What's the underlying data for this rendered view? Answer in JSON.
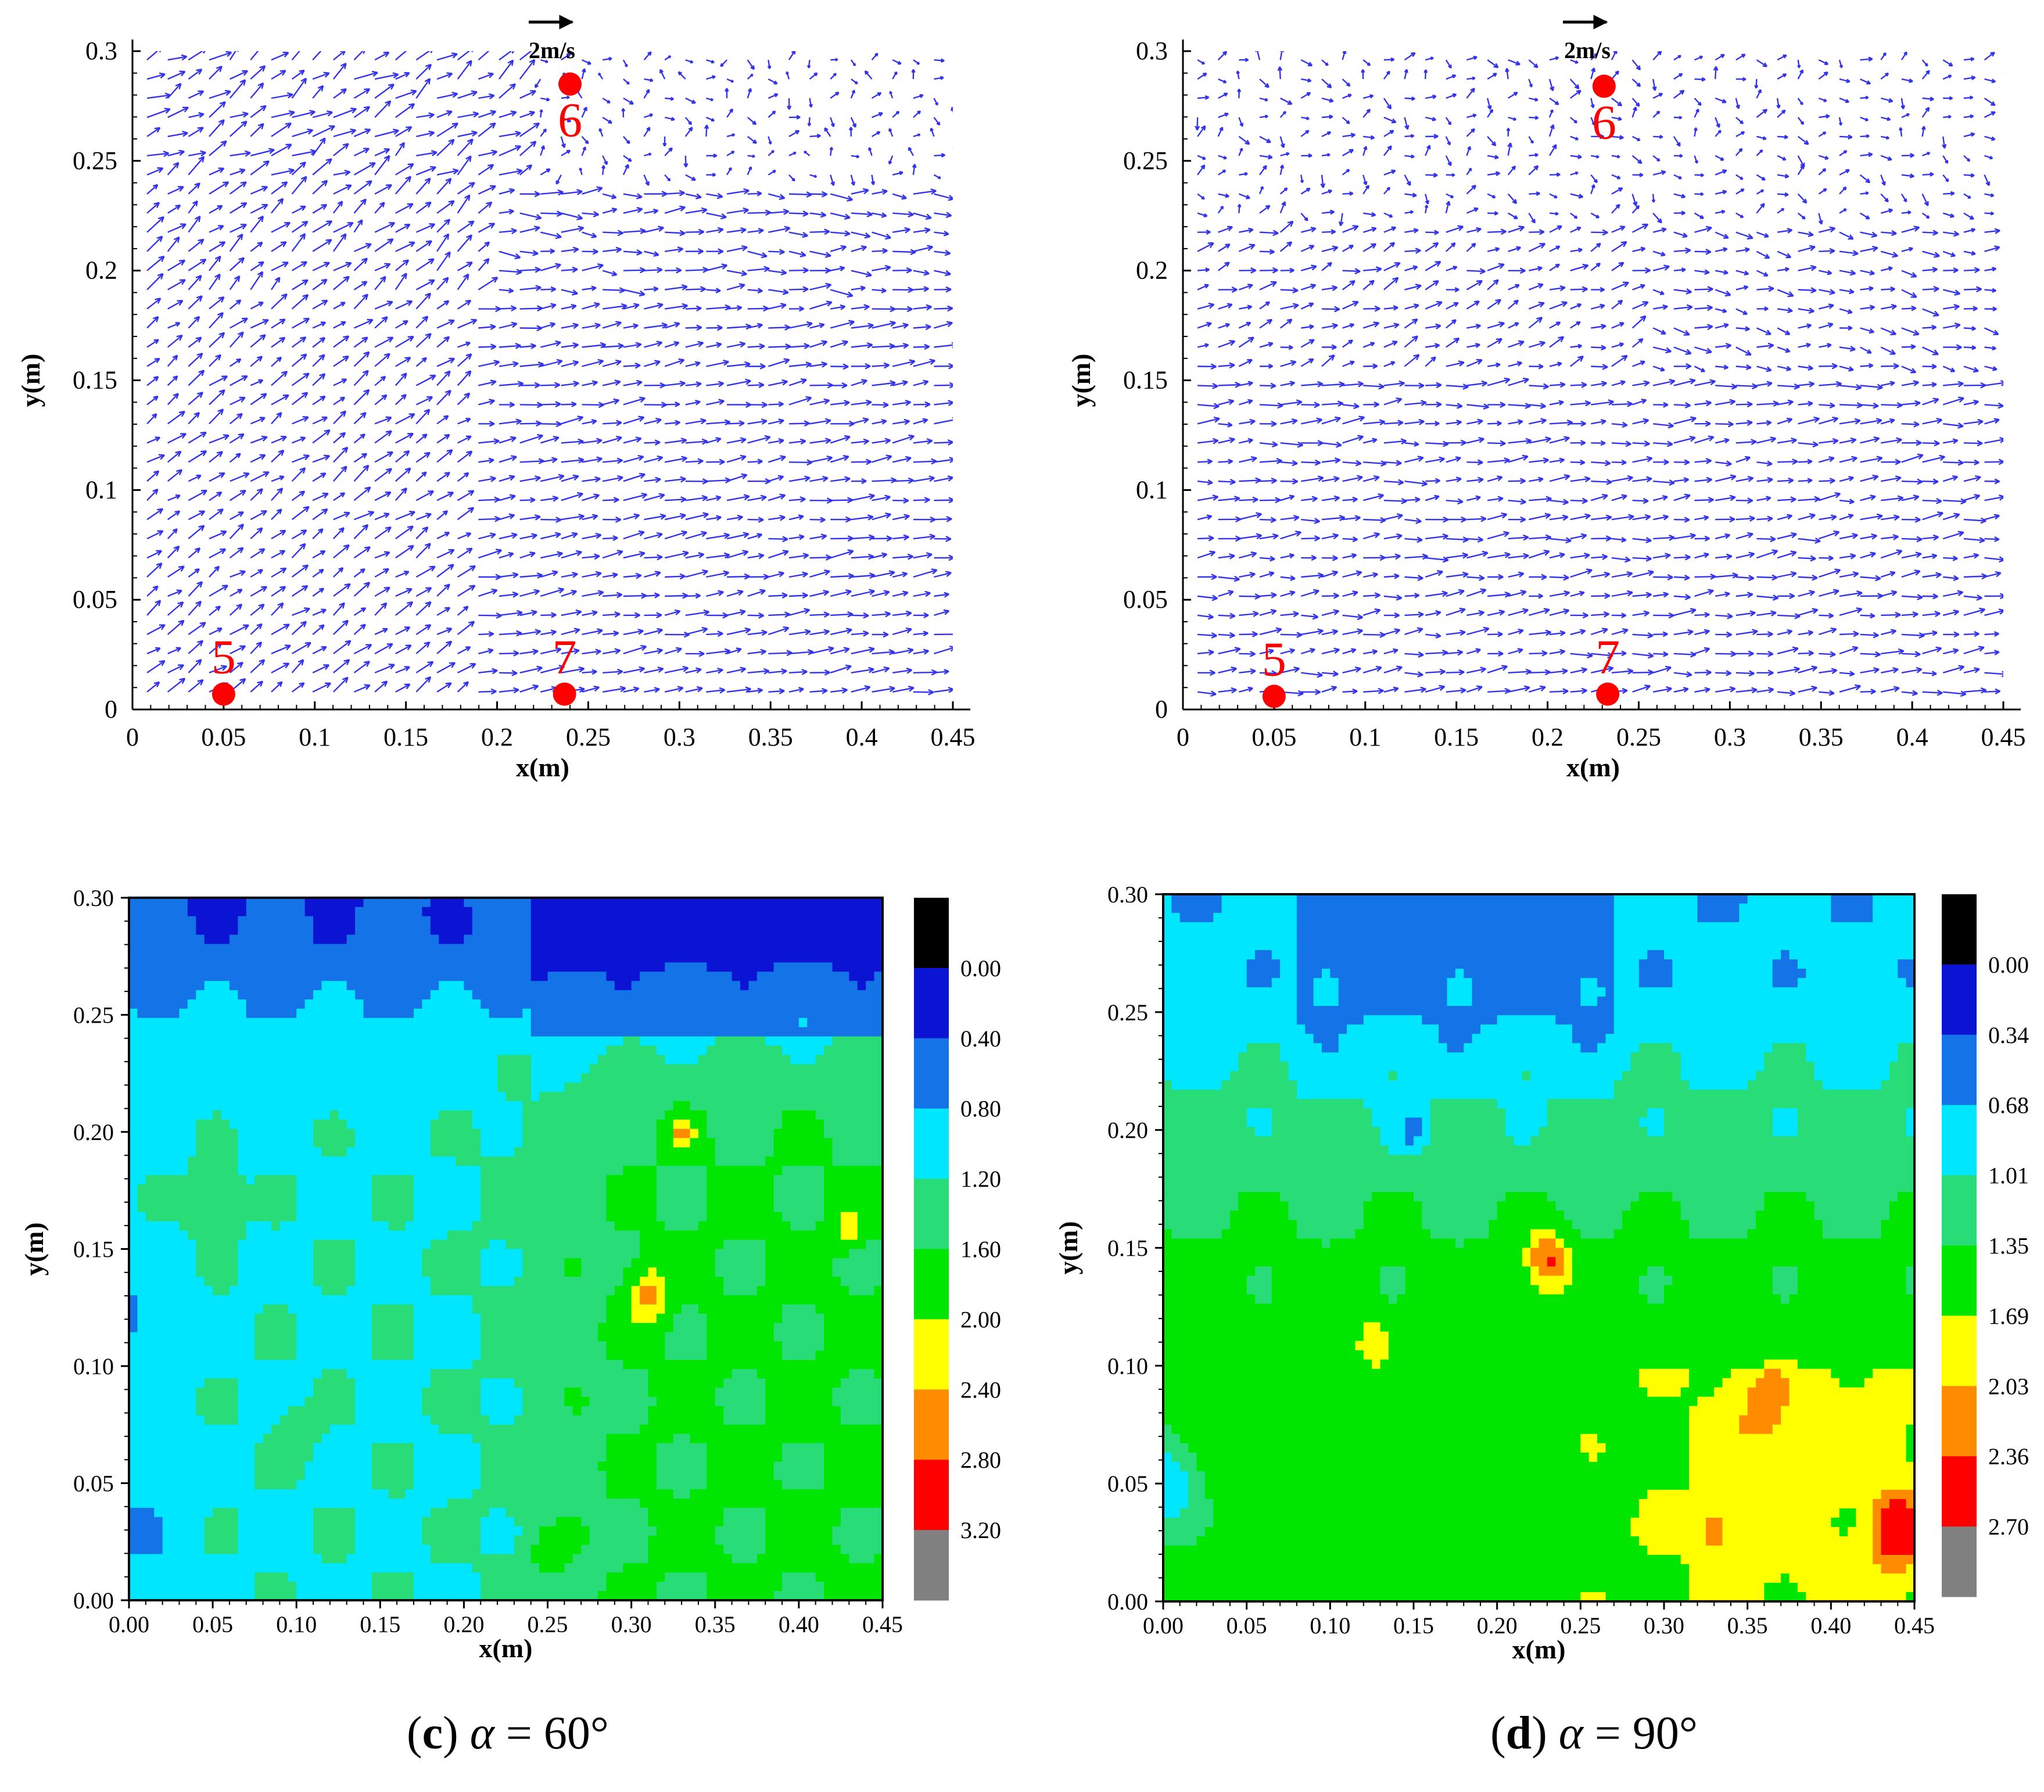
{
  "chart_data": [
    {
      "id": "a",
      "type": "vector",
      "xlabel": "x(m)",
      "ylabel": "y(m)",
      "xlim": [
        0,
        0.45
      ],
      "ylim": [
        0,
        0.3
      ],
      "xticks": [
        "0",
        "0.05",
        "0.1",
        "0.15",
        "0.2",
        "0.25",
        "0.3",
        "0.35",
        "0.4",
        "0.45"
      ],
      "yticks": [
        "0",
        "0.05",
        "0.1",
        "0.15",
        "0.2",
        "0.25",
        "0.3"
      ],
      "reference_vector": "2m/s",
      "arrow_color": "#3333ee",
      "points": [
        {
          "label": "6",
          "x": 0.24,
          "y": 0.285
        },
        {
          "label": "5",
          "x": 0.05,
          "y": 0.007
        },
        {
          "label": "7",
          "x": 0.237,
          "y": 0.007
        }
      ]
    },
    {
      "id": "b",
      "type": "vector",
      "xlabel": "x(m)",
      "ylabel": "y(m)",
      "xlim": [
        0,
        0.45
      ],
      "ylim": [
        0,
        0.3
      ],
      "xticks": [
        "0",
        "0.05",
        "0.1",
        "0.15",
        "0.2",
        "0.25",
        "0.3",
        "0.35",
        "0.4",
        "0.45"
      ],
      "yticks": [
        "0",
        "0.05",
        "0.1",
        "0.15",
        "0.2",
        "0.25",
        "0.3"
      ],
      "reference_vector": "2m/s",
      "arrow_color": "#3333ee",
      "points": [
        {
          "label": "6",
          "x": 0.231,
          "y": 0.284
        },
        {
          "label": "5",
          "x": 0.05,
          "y": 0.006
        },
        {
          "label": "7",
          "x": 0.233,
          "y": 0.007
        }
      ]
    },
    {
      "id": "c",
      "type": "heatmap",
      "xlabel": "x(m)",
      "ylabel": "y(m)",
      "xlim": [
        0,
        0.45
      ],
      "ylim": [
        0,
        0.3
      ],
      "xticks": [
        "0.00",
        "0.05",
        "0.10",
        "0.15",
        "0.20",
        "0.25",
        "0.30",
        "0.35",
        "0.40",
        "0.45"
      ],
      "yticks": [
        "0.00",
        "0.05",
        "0.10",
        "0.15",
        "0.20",
        "0.25",
        "0.30"
      ],
      "legend_levels": [
        "0.00",
        "0.40",
        "0.80",
        "1.20",
        "1.60",
        "2.00",
        "2.40",
        "2.80",
        "3.20"
      ],
      "legend_colors": [
        "#000000",
        "#0a14d2",
        "#1473e6",
        "#00e6ff",
        "#28dc78",
        "#00e600",
        "#ffff00",
        "#ff8c00",
        "#ff0000",
        "#808080"
      ],
      "caption_letter": "c",
      "caption_symbol": "α",
      "caption_value": "= 60°"
    },
    {
      "id": "d",
      "type": "heatmap",
      "xlabel": "x(m)",
      "ylabel": "y(m)",
      "xlim": [
        0,
        0.45
      ],
      "ylim": [
        0,
        0.3
      ],
      "xticks": [
        "0.00",
        "0.05",
        "0.10",
        "0.15",
        "0.20",
        "0.25",
        "0.30",
        "0.35",
        "0.40",
        "0.45"
      ],
      "yticks": [
        "0.00",
        "0.05",
        "0.10",
        "0.15",
        "0.20",
        "0.25",
        "0.30"
      ],
      "legend_levels": [
        "0.00",
        "0.34",
        "0.68",
        "1.01",
        "1.35",
        "1.69",
        "2.03",
        "2.36",
        "2.70"
      ],
      "legend_colors": [
        "#000000",
        "#0a14d2",
        "#1473e6",
        "#00e6ff",
        "#28dc78",
        "#00e600",
        "#ffff00",
        "#ff8c00",
        "#ff0000",
        "#808080"
      ],
      "caption_letter": "d",
      "caption_symbol": "α",
      "caption_value": "= 90°"
    }
  ]
}
